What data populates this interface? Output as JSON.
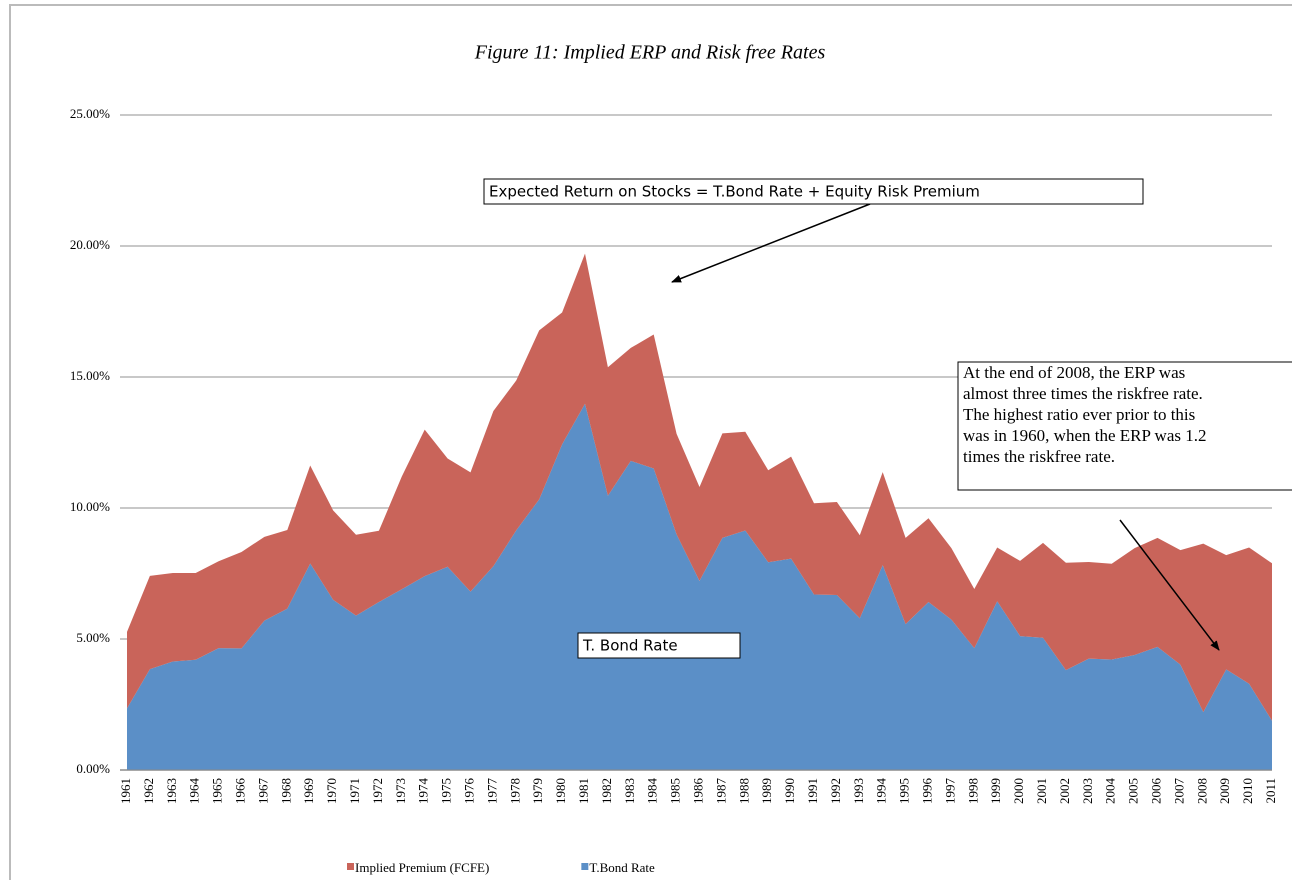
{
  "chart_data": {
    "type": "stacked_area",
    "title": "Figure 11: Implied ERP and Risk free Rates",
    "categories": [
      "1961",
      "1962",
      "1963",
      "1964",
      "1965",
      "1966",
      "1967",
      "1968",
      "1969",
      "1970",
      "1971",
      "1972",
      "1973",
      "1974",
      "1975",
      "1976",
      "1977",
      "1978",
      "1979",
      "1980",
      "1981",
      "1982",
      "1983",
      "1984",
      "1985",
      "1986",
      "1987",
      "1988",
      "1989",
      "1990",
      "1991",
      "1992",
      "1993",
      "1994",
      "1995",
      "1996",
      "1997",
      "1998",
      "1999",
      "2000",
      "2001",
      "2002",
      "2003",
      "2004",
      "2005",
      "2006",
      "2007",
      "2008",
      "2009",
      "2010",
      "2011"
    ],
    "series": [
      {
        "name": "Implied Premium (FCFE)",
        "color": "#c9645a",
        "values": [
          2.92,
          3.56,
          3.38,
          3.31,
          3.32,
          3.68,
          3.2,
          3.0,
          3.74,
          3.41,
          3.09,
          2.72,
          4.3,
          5.59,
          4.13,
          4.55,
          5.92,
          5.72,
          6.45,
          5.03,
          5.73,
          4.9,
          4.31,
          5.11,
          3.84,
          3.58,
          3.99,
          3.77,
          3.51,
          3.89,
          3.48,
          3.55,
          3.17,
          3.55,
          3.29,
          3.2,
          2.73,
          2.26,
          2.05,
          2.87,
          3.62,
          4.1,
          3.69,
          3.65,
          4.08,
          4.16,
          4.37,
          6.43,
          4.36,
          5.2,
          6.01
        ]
      },
      {
        "name": "T.Bond Rate",
        "color": "#5b8fc7",
        "values": [
          2.35,
          3.85,
          4.14,
          4.21,
          4.65,
          4.64,
          5.7,
          6.16,
          7.88,
          6.5,
          5.89,
          6.41,
          6.9,
          7.4,
          7.76,
          6.81,
          7.78,
          9.15,
          10.33,
          12.43,
          13.98,
          10.47,
          11.8,
          11.51,
          8.99,
          7.22,
          8.86,
          9.14,
          7.93,
          8.07,
          6.7,
          6.68,
          5.79,
          7.82,
          5.57,
          6.41,
          5.74,
          4.65,
          6.44,
          5.11,
          5.05,
          3.81,
          4.25,
          4.22,
          4.39,
          4.7,
          4.02,
          2.21,
          3.84,
          3.29,
          1.88
        ]
      }
    ],
    "ylim": [
      0,
      25
    ],
    "yticks": [
      {
        "value": 0,
        "label": "0.00%"
      },
      {
        "value": 5,
        "label": "5.00%"
      },
      {
        "value": 10,
        "label": "10.00%"
      },
      {
        "value": 15,
        "label": "15.00%"
      },
      {
        "value": 20,
        "label": "20.00%"
      },
      {
        "value": 25,
        "label": "25.00%"
      }
    ],
    "grid": true,
    "legend": "bottom",
    "annotations": [
      {
        "text": "Expected Return on Stocks = T.Bond Rate + Equity Risk Premium"
      },
      {
        "lines": [
          "At the end of 2008, the ERP was",
          "almost three times the riskfree rate.",
          "The highest ratio ever prior to this",
          "was in 1960, when the ERP was 1.2",
          "times the riskfree rate."
        ]
      },
      {
        "text": "T. Bond Rate"
      }
    ]
  }
}
